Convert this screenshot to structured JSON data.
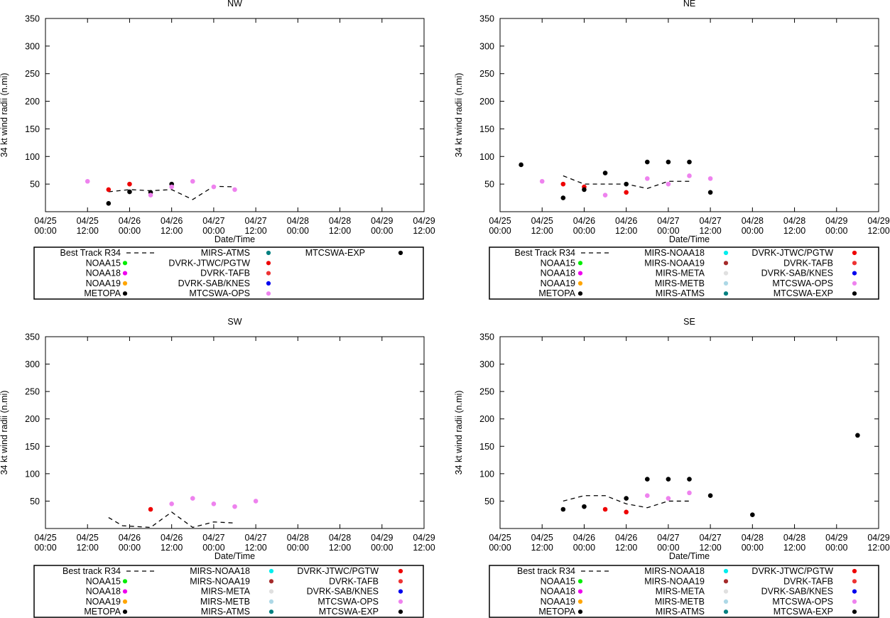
{
  "chart_data": [
    {
      "type": "scatter",
      "title": "NW",
      "xlabel": "Date/Time",
      "ylabel": "34 kt wind radii (n.mi)",
      "ylim": [
        0,
        350
      ],
      "yticks": [
        "50",
        "100",
        "150",
        "200",
        "250",
        "300",
        "350"
      ],
      "xlim": [
        0,
        108
      ],
      "xticks": [
        {
          "date": "04/25",
          "time": "00:00"
        },
        {
          "date": "04/25",
          "time": "12:00"
        },
        {
          "date": "04/26",
          "time": "00:00"
        },
        {
          "date": "04/26",
          "time": "12:00"
        },
        {
          "date": "04/27",
          "time": "00:00"
        },
        {
          "date": "04/27",
          "time": "12:00"
        },
        {
          "date": "04/28",
          "time": "00:00"
        },
        {
          "date": "04/28",
          "time": "12:00"
        },
        {
          "date": "04/29",
          "time": "00:00"
        },
        {
          "date": "04/29",
          "time": "12:00"
        }
      ],
      "best_track": {
        "x": [
          18,
          24,
          30,
          36,
          42,
          48,
          54
        ],
        "y": [
          36,
          40,
          38,
          40,
          22,
          46,
          45
        ]
      },
      "series": [
        {
          "name": "DVRK-JTWC/PGTW",
          "color": "#ee0000",
          "points": [
            [
              18,
              40
            ],
            [
              24,
              50
            ]
          ]
        },
        {
          "name": "METOPA",
          "color": "#000000",
          "points": [
            [
              18,
              15
            ],
            [
              24,
              36
            ],
            [
              30,
              35
            ],
            [
              36,
              50
            ]
          ]
        },
        {
          "name": "MTCSWA-OPS",
          "color": "#ee82ee",
          "points": [
            [
              12,
              55
            ],
            [
              30,
              30
            ],
            [
              36,
              45
            ],
            [
              42,
              55
            ],
            [
              48,
              45
            ],
            [
              54,
              40
            ]
          ]
        }
      ],
      "legend": {
        "columns": [
          [
            "Best Track R34",
            "NOAA15",
            "NOAA18",
            "NOAA19",
            "METOPA"
          ],
          [
            "MIRS-ATMS",
            "DVRK-JTWC/PGTW",
            "DVRK-TAFB",
            "DVRK-SAB/KNES",
            "MTCSWA-OPS"
          ],
          [
            "MTCSWA-EXP"
          ]
        ],
        "colors": [
          [
            "line",
            "#00ee00",
            "#ee00ee",
            "#ffa500",
            "#000000"
          ],
          [
            "#008080",
            "#ee0000",
            "#ee3333",
            "#0000ee",
            "#ee82ee"
          ],
          [
            "#000000"
          ]
        ]
      }
    },
    {
      "type": "scatter",
      "title": "NE",
      "xlabel": "Date/Time",
      "ylabel": "34 kt wind radii (n.mi)",
      "ylim": [
        0,
        350
      ],
      "yticks": [
        "50",
        "100",
        "150",
        "200",
        "250",
        "300",
        "350"
      ],
      "xlim": [
        0,
        108
      ],
      "xticks": [
        {
          "date": "04/25",
          "time": "00:00"
        },
        {
          "date": "04/25",
          "time": "12:00"
        },
        {
          "date": "04/26",
          "time": "00:00"
        },
        {
          "date": "04/26",
          "time": "12:00"
        },
        {
          "date": "04/27",
          "time": "00:00"
        },
        {
          "date": "04/27",
          "time": "12:00"
        },
        {
          "date": "04/28",
          "time": "00:00"
        },
        {
          "date": "04/28",
          "time": "12:00"
        },
        {
          "date": "04/29",
          "time": "00:00"
        },
        {
          "date": "04/29",
          "time": "12:00"
        }
      ],
      "best_track": {
        "x": [
          18,
          24,
          30,
          36,
          42,
          48,
          54
        ],
        "y": [
          65,
          50,
          50,
          50,
          42,
          55,
          55
        ]
      },
      "series": [
        {
          "name": "DVRK-JTWC/PGTW",
          "color": "#ee0000",
          "points": [
            [
              18,
              50
            ],
            [
              24,
              45
            ],
            [
              36,
              35
            ]
          ]
        },
        {
          "name": "MTCSWA-EXP",
          "color": "#000000",
          "points": [
            [
              6,
              85
            ],
            [
              18,
              25
            ],
            [
              24,
              40
            ],
            [
              30,
              70
            ],
            [
              36,
              50
            ],
            [
              42,
              90
            ],
            [
              48,
              90
            ],
            [
              54,
              90
            ],
            [
              60,
              35
            ]
          ]
        },
        {
          "name": "MTCSWA-OPS",
          "color": "#ee82ee",
          "points": [
            [
              12,
              55
            ],
            [
              30,
              30
            ],
            [
              42,
              60
            ],
            [
              48,
              50
            ],
            [
              54,
              65
            ],
            [
              60,
              60
            ]
          ]
        }
      ],
      "legend": {
        "columns": [
          [
            "Best Track R34",
            "NOAA15",
            "NOAA18",
            "NOAA19",
            "METOPA"
          ],
          [
            "MIRS-NOAA18",
            "MIRS-NOAA19",
            "MIRS-META",
            "MIRS-METB",
            "MIRS-ATMS"
          ],
          [
            "DVRK-JTWC/PGTW",
            "DVRK-TAFB",
            "DVRK-SAB/KNES",
            "MTCSWA-OPS",
            "MTCSWA-EXP"
          ]
        ],
        "colors": [
          [
            "line",
            "#00ee00",
            "#ee00ee",
            "#ffa500",
            "#000000"
          ],
          [
            "#00eeee",
            "#a52a2a",
            "#e0e0e0",
            "#add8e6",
            "#008080"
          ],
          [
            "#ee0000",
            "#ee3333",
            "#0000ee",
            "#ee82ee",
            "#000000"
          ]
        ]
      }
    },
    {
      "type": "scatter",
      "title": "SW",
      "xlabel": "Date/Time",
      "ylabel": "34 kt wind radii (n.mi)",
      "ylim": [
        0,
        350
      ],
      "yticks": [
        "50",
        "100",
        "150",
        "200",
        "250",
        "300",
        "350"
      ],
      "xlim": [
        0,
        108
      ],
      "xticks": [
        {
          "date": "04/25",
          "time": "00:00"
        },
        {
          "date": "04/25",
          "time": "12:00"
        },
        {
          "date": "04/26",
          "time": "00:00"
        },
        {
          "date": "04/26",
          "time": "12:00"
        },
        {
          "date": "04/27",
          "time": "00:00"
        },
        {
          "date": "04/27",
          "time": "12:00"
        },
        {
          "date": "04/28",
          "time": "00:00"
        },
        {
          "date": "04/28",
          "time": "12:00"
        },
        {
          "date": "04/29",
          "time": "00:00"
        },
        {
          "date": "04/29",
          "time": "12:00"
        }
      ],
      "best_track": {
        "x": [
          18,
          22,
          30,
          36,
          42,
          48,
          54
        ],
        "y": [
          20,
          5,
          2,
          30,
          2,
          12,
          10
        ]
      },
      "series": [
        {
          "name": "DVRK-JTWC/PGTW",
          "color": "#ee0000",
          "points": [
            [
              30,
              35
            ]
          ]
        },
        {
          "name": "MTCSWA-OPS",
          "color": "#ee82ee",
          "points": [
            [
              36,
              45
            ],
            [
              42,
              55
            ],
            [
              48,
              45
            ],
            [
              54,
              40
            ],
            [
              60,
              50
            ]
          ]
        }
      ],
      "legend": {
        "columns": [
          [
            "Best track R34",
            "NOAA15",
            "NOAA18",
            "NOAA19",
            "METOPA"
          ],
          [
            "MIRS-NOAA18",
            "MIRS-NOAA19",
            "MIRS-META",
            "MIRS-METB",
            "MIRS-ATMS"
          ],
          [
            "DVRK-JTWC/PGTW",
            "DVRK-TAFB",
            "DVRK-SAB/KNES",
            "MTCSWA-OPS",
            "MTCSWA-EXP"
          ]
        ],
        "colors": [
          [
            "line",
            "#00ee00",
            "#ee00ee",
            "#ffa500",
            "#000000"
          ],
          [
            "#00eeee",
            "#a52a2a",
            "#e0e0e0",
            "#add8e6",
            "#008080"
          ],
          [
            "#ee0000",
            "#ee3333",
            "#0000ee",
            "#ee82ee",
            "#000000"
          ]
        ]
      }
    },
    {
      "type": "scatter",
      "title": "SE",
      "xlabel": "Date/Time",
      "ylabel": "34 kt wind radii (n.mi)",
      "ylim": [
        0,
        350
      ],
      "yticks": [
        "50",
        "100",
        "150",
        "200",
        "250",
        "300",
        "350"
      ],
      "xlim": [
        0,
        108
      ],
      "xticks": [
        {
          "date": "04/25",
          "time": "00:00"
        },
        {
          "date": "04/25",
          "time": "12:00"
        },
        {
          "date": "04/26",
          "time": "00:00"
        },
        {
          "date": "04/26",
          "time": "12:00"
        },
        {
          "date": "04/27",
          "time": "00:00"
        },
        {
          "date": "04/27",
          "time": "12:00"
        },
        {
          "date": "04/28",
          "time": "00:00"
        },
        {
          "date": "04/28",
          "time": "12:00"
        },
        {
          "date": "04/29",
          "time": "00:00"
        },
        {
          "date": "04/29",
          "time": "12:00"
        }
      ],
      "best_track": {
        "x": [
          18,
          24,
          30,
          36,
          42,
          48,
          54
        ],
        "y": [
          50,
          60,
          60,
          45,
          38,
          50,
          50
        ]
      },
      "series": [
        {
          "name": "DVRK-JTWC/PGTW",
          "color": "#ee0000",
          "points": [
            [
              30,
              35
            ],
            [
              36,
              30
            ]
          ]
        },
        {
          "name": "MTCSWA-EXP",
          "color": "#000000",
          "points": [
            [
              18,
              35
            ],
            [
              24,
              40
            ],
            [
              36,
              55
            ],
            [
              42,
              90
            ],
            [
              48,
              90
            ],
            [
              54,
              90
            ],
            [
              60,
              60
            ],
            [
              72,
              25
            ],
            [
              102,
              170
            ]
          ]
        },
        {
          "name": "MTCSWA-OPS",
          "color": "#ee82ee",
          "points": [
            [
              42,
              60
            ],
            [
              48,
              55
            ],
            [
              54,
              65
            ]
          ]
        }
      ],
      "legend": {
        "columns": [
          [
            "Best track R34",
            "NOAA15",
            "NOAA18",
            "NOAA19",
            "METOPA"
          ],
          [
            "MIRS-NOAA18",
            "MIRS-NOAA19",
            "MIRS-META",
            "MIRS-METB",
            "MIRS-ATMS"
          ],
          [
            "DVRK-JTWC/PGTW",
            "DVRK-TAFB",
            "DVRK-SAB/KNES",
            "MTCSWA-OPS",
            "MTCSWA-EXP"
          ]
        ],
        "colors": [
          [
            "line",
            "#00ee00",
            "#ee00ee",
            "#ffa500",
            "#000000"
          ],
          [
            "#00eeee",
            "#a52a2a",
            "#e0e0e0",
            "#add8e6",
            "#008080"
          ],
          [
            "#ee0000",
            "#ee3333",
            "#0000ee",
            "#ee82ee",
            "#000000"
          ]
        ]
      }
    }
  ]
}
